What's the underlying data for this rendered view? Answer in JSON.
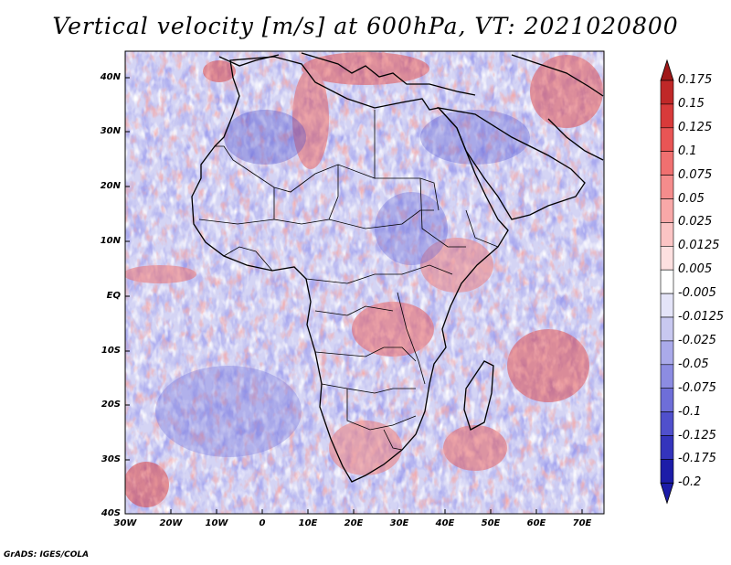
{
  "title": "Vertical velocity [m/s] at 600hPa, VT: 2021020800",
  "footer": "GrADS: IGES/COLA",
  "map": {
    "region": "Africa",
    "latitude_labels": [
      "40N",
      "30N",
      "20N",
      "10N",
      "EQ",
      "10S",
      "20S",
      "30S",
      "40S"
    ],
    "longitude_labels": [
      "30W",
      "20W",
      "10W",
      "0",
      "10E",
      "20E",
      "30E",
      "40E",
      "50E",
      "60E",
      "70E"
    ]
  },
  "colorbar": {
    "labels": [
      "0.175",
      "0.15",
      "0.125",
      "0.1",
      "0.075",
      "0.05",
      "0.025",
      "0.0125",
      "0.005",
      "-0.005",
      "-0.0125",
      "-0.025",
      "-0.05",
      "-0.075",
      "-0.1",
      "-0.125",
      "-0.175",
      "-0.2"
    ],
    "colors": [
      "#a01818",
      "#c02828",
      "#d83a3a",
      "#e85555",
      "#f07070",
      "#f58c8c",
      "#f8a8a8",
      "#fbc4c4",
      "#fde0e0",
      "#ffffff",
      "#e4e4f8",
      "#c8c8f0",
      "#aaaaea",
      "#8c8ce2",
      "#6e6ed8",
      "#5050cc",
      "#3434bc",
      "#1c1ca8"
    ]
  },
  "colors": {
    "positive": "#d83a3a",
    "negative": "#5050cc",
    "background": "#d4d4f4",
    "coast": "#000000"
  }
}
